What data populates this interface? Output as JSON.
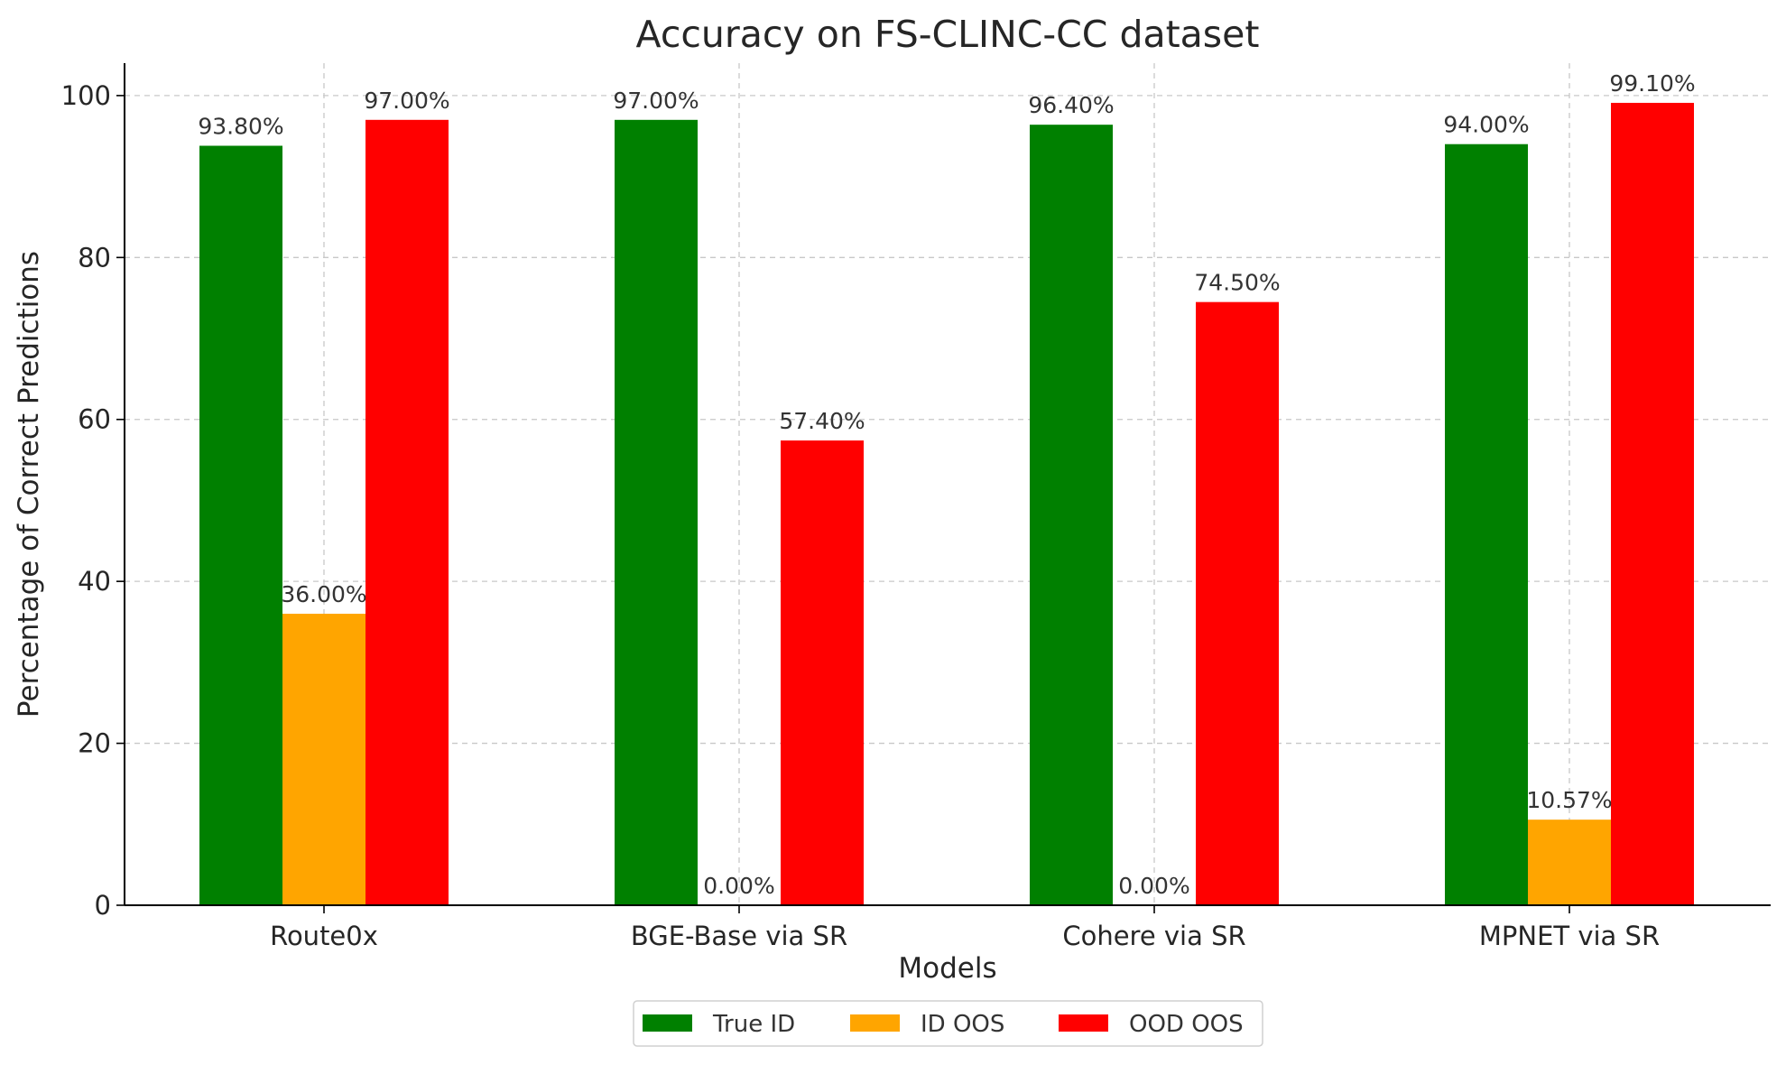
{
  "chart_data": {
    "type": "bar",
    "title": "Accuracy on FS-CLINC-CC dataset",
    "xlabel": "Models",
    "ylabel": "Percentage of Correct Predictions",
    "categories": [
      "Route0x",
      "BGE-Base via SR",
      "Cohere via SR",
      "MPNET via SR"
    ],
    "series": [
      {
        "name": "True ID",
        "color": "#008000",
        "values": [
          93.8,
          97.0,
          96.4,
          94.0
        ],
        "labels": [
          "93.80%",
          "97.00%",
          "96.40%",
          "94.00%"
        ]
      },
      {
        "name": "ID OOS",
        "color": "#FFA500",
        "values": [
          36.0,
          0.0,
          0.0,
          10.57
        ],
        "labels": [
          "36.00%",
          "0.00%",
          "0.00%",
          "10.57%"
        ]
      },
      {
        "name": "OOD OOS",
        "color": "#FF0000",
        "values": [
          97.0,
          57.4,
          74.5,
          99.1
        ],
        "labels": [
          "97.00%",
          "57.40%",
          "74.50%",
          "99.10%"
        ]
      }
    ],
    "ylim": [
      0,
      104
    ],
    "yticks": [
      0,
      20,
      40,
      60,
      80,
      100
    ],
    "grid": true,
    "legend_position": "bottom-center"
  }
}
